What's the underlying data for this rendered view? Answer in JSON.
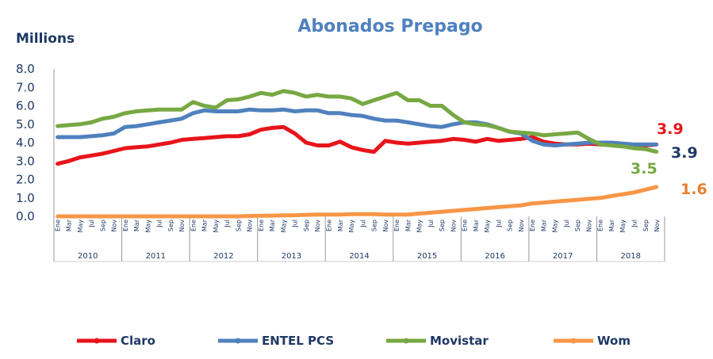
{
  "chart_data": {
    "type": "line",
    "title": "Abonados Prepago",
    "ylabel": "Millions",
    "ylim": [
      0,
      8
    ],
    "yticks": [
      "0.0",
      "1.0",
      "2.0",
      "3.0",
      "4.0",
      "5.0",
      "6.0",
      "7.0",
      "8.0"
    ],
    "years": [
      "2010",
      "2011",
      "2012",
      "2013",
      "2014",
      "2015",
      "2016",
      "2017",
      "2018"
    ],
    "month_labels": [
      "Ene",
      "Mar",
      "May",
      "Jul",
      "Sep",
      "Nov"
    ],
    "x_note": "bimonthly samples Ene..Nov per year",
    "series": [
      {
        "name": "Claro",
        "color": "#e8141b",
        "end_label": "3.9",
        "values": [
          2.85,
          3.0,
          3.2,
          3.3,
          3.4,
          3.55,
          3.7,
          3.75,
          3.8,
          3.9,
          4.0,
          4.15,
          4.2,
          4.25,
          4.3,
          4.35,
          4.35,
          4.45,
          4.7,
          4.8,
          4.85,
          4.5,
          4.0,
          3.85,
          3.85,
          4.05,
          3.75,
          3.6,
          3.5,
          4.1,
          4.0,
          3.95,
          4.0,
          4.05,
          4.1,
          4.2,
          4.15,
          4.05,
          4.2,
          4.1,
          4.15,
          4.2,
          4.3,
          4.05,
          3.95,
          3.9,
          3.9,
          3.95,
          3.9,
          3.9,
          3.85,
          3.85,
          3.85,
          3.9
        ]
      },
      {
        "name": "ENTEL PCS",
        "color": "#4f81bd",
        "label_color": "#1f3864",
        "end_label": "3.9",
        "values": [
          4.3,
          4.3,
          4.3,
          4.35,
          4.4,
          4.5,
          4.85,
          4.9,
          5.0,
          5.1,
          5.2,
          5.3,
          5.6,
          5.75,
          5.7,
          5.7,
          5.7,
          5.8,
          5.75,
          5.75,
          5.8,
          5.7,
          5.75,
          5.75,
          5.6,
          5.6,
          5.5,
          5.45,
          5.3,
          5.2,
          5.2,
          5.1,
          5.0,
          4.9,
          4.85,
          5.0,
          5.1,
          5.1,
          5.0,
          4.8,
          4.6,
          4.5,
          4.1,
          3.9,
          3.85,
          3.9,
          3.95,
          4.0,
          4.0,
          4.0,
          3.95,
          3.9,
          3.9,
          3.9
        ]
      },
      {
        "name": "Movistar",
        "color": "#77a843",
        "end_label": "3.5",
        "values": [
          4.9,
          4.95,
          5.0,
          5.1,
          5.3,
          5.4,
          5.6,
          5.7,
          5.75,
          5.8,
          5.8,
          5.8,
          6.2,
          6.0,
          5.9,
          6.3,
          6.35,
          6.5,
          6.7,
          6.6,
          6.8,
          6.7,
          6.5,
          6.6,
          6.5,
          6.5,
          6.4,
          6.1,
          6.3,
          6.5,
          6.7,
          6.3,
          6.3,
          6.0,
          6.0,
          5.5,
          5.1,
          5.0,
          4.95,
          4.8,
          4.6,
          4.55,
          4.5,
          4.4,
          4.45,
          4.5,
          4.55,
          4.2,
          3.9,
          3.85,
          3.8,
          3.7,
          3.65,
          3.5
        ]
      },
      {
        "name": "Wom",
        "color": "#f79646",
        "label_color": "#e8802e",
        "end_label": "1.6",
        "values": [
          0,
          0,
          0,
          0,
          0,
          0,
          0,
          0,
          0,
          0,
          0,
          0,
          0,
          0,
          0,
          0,
          0,
          0.02,
          0.03,
          0.04,
          0.05,
          0.06,
          0.08,
          0.1,
          0.1,
          0.1,
          0.12,
          0.12,
          0.12,
          0.1,
          0.1,
          0.1,
          0.15,
          0.2,
          0.25,
          0.3,
          0.35,
          0.4,
          0.45,
          0.5,
          0.55,
          0.6,
          0.7,
          0.75,
          0.8,
          0.85,
          0.9,
          0.95,
          1.0,
          1.1,
          1.2,
          1.3,
          1.45,
          1.6
        ]
      }
    ],
    "legend_position": "bottom"
  }
}
